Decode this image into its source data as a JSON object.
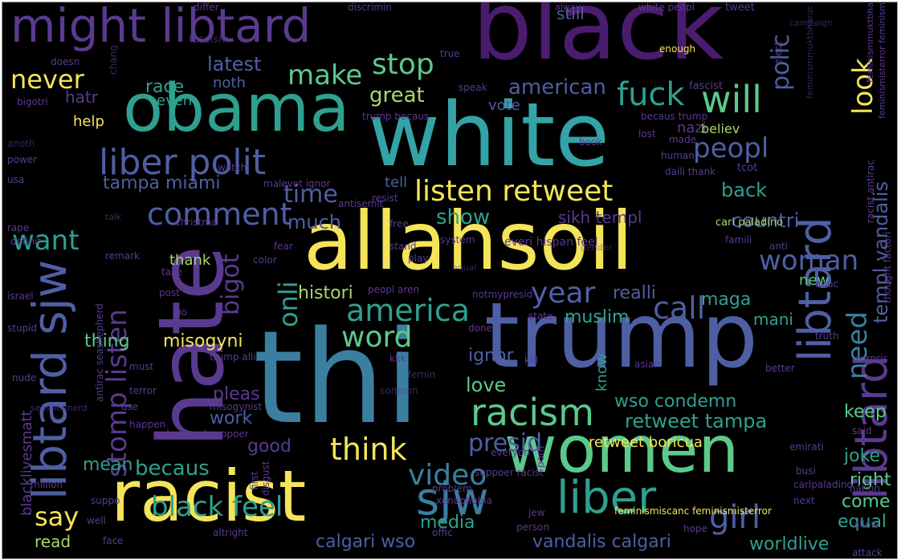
{
  "colors": {
    "background": "#000000",
    "yellow": "#f4e45a",
    "lime": "#a8d86a",
    "green": "#5cc98c",
    "teal": "#2fa08f",
    "cyan": "#34a3a7",
    "blue": "#3a7fa0",
    "indigo": "#4f5fa4",
    "violet": "#5a3a8f",
    "purple": "#4a1c6e"
  },
  "words": [
    {
      "text": "black",
      "color": "purple"
    },
    {
      "text": "white",
      "color": "cyan"
    },
    {
      "text": "allahsoil",
      "color": "yellow"
    },
    {
      "text": "thi",
      "color": "blue"
    },
    {
      "text": "trump",
      "color": "indigo"
    },
    {
      "text": "hate",
      "color": "violet"
    },
    {
      "text": "obama",
      "color": "teal"
    },
    {
      "text": "racist",
      "color": "yellow"
    },
    {
      "text": "women",
      "color": "green"
    },
    {
      "text": "libtard",
      "color": "violet"
    },
    {
      "text": "libtard",
      "color": "indigo"
    },
    {
      "text": "might libtard",
      "color": "violet"
    },
    {
      "text": "libtard sjw",
      "color": "indigo"
    },
    {
      "text": "sjw",
      "color": "blue"
    },
    {
      "text": "liber",
      "color": "teal"
    },
    {
      "text": "racism",
      "color": "green"
    },
    {
      "text": "liber polit",
      "color": "indigo"
    },
    {
      "text": "listen retweet",
      "color": "yellow"
    },
    {
      "text": "america",
      "color": "teal"
    },
    {
      "text": "stomp listen",
      "color": "violet"
    },
    {
      "text": "will",
      "color": "green"
    },
    {
      "text": "fuck",
      "color": "teal"
    },
    {
      "text": "comment",
      "color": "indigo"
    },
    {
      "text": "think",
      "color": "yellow"
    },
    {
      "text": "girl",
      "color": "indigo"
    },
    {
      "text": "video",
      "color": "blue"
    },
    {
      "text": "black feel",
      "color": "teal"
    },
    {
      "text": "call",
      "color": "indigo"
    },
    {
      "text": "stop",
      "color": "green"
    },
    {
      "text": "make",
      "color": "green"
    },
    {
      "text": "year",
      "color": "indigo"
    },
    {
      "text": "woman",
      "color": "indigo"
    },
    {
      "text": "peopl",
      "color": "indigo"
    },
    {
      "text": "look",
      "color": "yellow"
    },
    {
      "text": "need",
      "color": "blue"
    },
    {
      "text": "word",
      "color": "green"
    },
    {
      "text": "bigot",
      "color": "violet"
    },
    {
      "text": "onli",
      "color": "teal"
    },
    {
      "text": "want",
      "color": "teal"
    },
    {
      "text": "never",
      "color": "yellow"
    },
    {
      "text": "say",
      "color": "yellow"
    },
    {
      "text": "presid",
      "color": "indigo"
    },
    {
      "text": "time",
      "color": "indigo"
    },
    {
      "text": "latest",
      "color": "indigo"
    },
    {
      "text": "race",
      "color": "teal"
    },
    {
      "text": "polic",
      "color": "indigo"
    },
    {
      "text": "templ vandalis",
      "color": "indigo"
    },
    {
      "text": "retweet tampa",
      "color": "teal"
    },
    {
      "text": "tampa miami",
      "color": "indigo"
    },
    {
      "text": "sikh templ",
      "color": "violet"
    },
    {
      "text": "american",
      "color": "indigo"
    },
    {
      "text": "great",
      "color": "lime"
    },
    {
      "text": "becaus",
      "color": "teal"
    },
    {
      "text": "back",
      "color": "teal"
    },
    {
      "text": "countri",
      "color": "indigo"
    },
    {
      "text": "show",
      "color": "teal"
    },
    {
      "text": "much",
      "color": "indigo"
    },
    {
      "text": "histori",
      "color": "lime"
    },
    {
      "text": "realli",
      "color": "indigo"
    },
    {
      "text": "maga",
      "color": "teal"
    },
    {
      "text": "muslim",
      "color": "teal"
    },
    {
      "text": "thing",
      "color": "green"
    },
    {
      "text": "misogyni",
      "color": "yellow"
    },
    {
      "text": "ignor",
      "color": "indigo"
    },
    {
      "text": "love",
      "color": "green"
    },
    {
      "text": "wso condemn",
      "color": "teal"
    },
    {
      "text": "pleas",
      "color": "violet"
    },
    {
      "text": "work",
      "color": "indigo"
    },
    {
      "text": "good",
      "color": "violet"
    },
    {
      "text": "mean",
      "color": "teal"
    },
    {
      "text": "media",
      "color": "teal"
    },
    {
      "text": "calgari wso",
      "color": "indigo"
    },
    {
      "text": "vandalis calgari",
      "color": "indigo"
    },
    {
      "text": "worldlive",
      "color": "teal"
    },
    {
      "text": "equal",
      "color": "teal"
    },
    {
      "text": "come",
      "color": "green"
    },
    {
      "text": "right",
      "color": "green"
    },
    {
      "text": "joke",
      "color": "teal"
    },
    {
      "text": "keep",
      "color": "green"
    },
    {
      "text": "retweet boricua",
      "color": "yellow"
    },
    {
      "text": "read",
      "color": "lime"
    },
    {
      "text": "help",
      "color": "yellow"
    },
    {
      "text": "hatr",
      "color": "violet"
    },
    {
      "text": "even",
      "color": "teal"
    },
    {
      "text": "noth",
      "color": "indigo"
    },
    {
      "text": "vote",
      "color": "indigo"
    },
    {
      "text": "nazi",
      "color": "violet"
    },
    {
      "text": "believ",
      "color": "lime"
    },
    {
      "text": "tell",
      "color": "indigo"
    },
    {
      "text": "thank",
      "color": "lime"
    },
    {
      "text": "new",
      "color": "green"
    },
    {
      "text": "mani",
      "color": "teal"
    },
    {
      "text": "know",
      "color": "teal"
    },
    {
      "text": "blacklivesmatt",
      "color": "violet"
    },
    {
      "text": "still",
      "color": "indigo"
    },
    {
      "text": "differ",
      "color": "violet"
    },
    {
      "text": "discrimin",
      "color": "violet"
    },
    {
      "text": "tweet",
      "color": "violet"
    },
    {
      "text": "white peopl",
      "color": "violet"
    },
    {
      "text": "alway",
      "color": "violet"
    },
    {
      "text": "enough",
      "color": "yellow"
    },
    {
      "text": "fascist",
      "color": "violet"
    },
    {
      "text": "bigotri",
      "color": "violet"
    },
    {
      "text": "doesn",
      "color": "violet"
    },
    {
      "text": "true",
      "color": "violet"
    },
    {
      "text": "speak",
      "color": "violet"
    },
    {
      "text": "trump becaus",
      "color": "violet"
    },
    {
      "text": "becaus trump",
      "color": "violet"
    },
    {
      "text": "lost",
      "color": "violet"
    },
    {
      "text": "elect",
      "color": "violet"
    },
    {
      "text": "human",
      "color": "violet"
    },
    {
      "text": "daili thank",
      "color": "violet"
    },
    {
      "text": "tcot",
      "color": "violet"
    },
    {
      "text": "malevot ignor",
      "color": "violet"
    },
    {
      "text": "resist",
      "color": "violet"
    },
    {
      "text": "carl paladino",
      "color": "lime"
    },
    {
      "text": "antisemit",
      "color": "violet"
    },
    {
      "text": "christma",
      "color": "violet"
    },
    {
      "text": "watch",
      "color": "violet"
    },
    {
      "text": "usa",
      "color": "violet"
    },
    {
      "text": "rape",
      "color": "violet"
    },
    {
      "text": "israel",
      "color": "violet"
    },
    {
      "text": "stupid",
      "color": "violet"
    },
    {
      "text": "nude",
      "color": "violet"
    },
    {
      "text": "definit",
      "color": "violet"
    },
    {
      "text": "remark",
      "color": "violet"
    },
    {
      "text": "free",
      "color": "violet"
    },
    {
      "text": "system",
      "color": "violet"
    },
    {
      "text": "everi hispan feel",
      "color": "violet"
    },
    {
      "text": "stand",
      "color": "violet"
    },
    {
      "text": "play",
      "color": "violet"
    },
    {
      "text": "fear",
      "color": "violet"
    },
    {
      "text": "color",
      "color": "violet"
    },
    {
      "text": "take",
      "color": "violet"
    },
    {
      "text": "post",
      "color": "violet"
    },
    {
      "text": "go",
      "color": "violet"
    },
    {
      "text": "peopl aren",
      "color": "violet"
    },
    {
      "text": "notmypresid",
      "color": "violet"
    },
    {
      "text": "state",
      "color": "violet"
    },
    {
      "text": "educ",
      "color": "violet"
    },
    {
      "text": "anti",
      "color": "violet"
    },
    {
      "text": "famili",
      "color": "violet"
    },
    {
      "text": "truth",
      "color": "violet"
    },
    {
      "text": "done",
      "color": "violet"
    },
    {
      "text": "kill",
      "color": "violet"
    },
    {
      "text": "kkk",
      "color": "violet"
    },
    {
      "text": "trump alli",
      "color": "violet"
    },
    {
      "text": "misogynist",
      "color": "violet"
    },
    {
      "text": "shepherd suppoer",
      "color": "violet"
    },
    {
      "text": "antirac seashepherd",
      "color": "violet"
    },
    {
      "text": "happen",
      "color": "violet"
    },
    {
      "text": "use",
      "color": "violet"
    },
    {
      "text": "terror",
      "color": "violet"
    },
    {
      "text": "must",
      "color": "violet"
    },
    {
      "text": "first",
      "color": "violet"
    },
    {
      "text": "disgust",
      "color": "violet"
    },
    {
      "text": "everyon",
      "color": "violet"
    },
    {
      "text": "porn",
      "color": "violet"
    },
    {
      "text": "busi",
      "color": "violet"
    },
    {
      "text": "emirati",
      "color": "violet"
    },
    {
      "text": "carlpaladino",
      "color": "violet"
    },
    {
      "text": "next",
      "color": "violet"
    },
    {
      "text": "nation",
      "color": "violet"
    },
    {
      "text": "allow",
      "color": "violet"
    },
    {
      "text": "attack",
      "color": "violet"
    },
    {
      "text": "hope",
      "color": "violet"
    },
    {
      "text": "feminismiscanc feminismisterror",
      "color": "yellow"
    },
    {
      "text": "xenophobia",
      "color": "violet"
    },
    {
      "text": "jew",
      "color": "violet"
    },
    {
      "text": "person",
      "color": "violet"
    },
    {
      "text": "offic",
      "color": "violet"
    },
    {
      "text": "suppo",
      "color": "violet"
    },
    {
      "text": "well",
      "color": "violet"
    },
    {
      "text": "million",
      "color": "violet"
    },
    {
      "text": "altright",
      "color": "violet"
    },
    {
      "text": "face",
      "color": "violet"
    },
    {
      "text": "problem",
      "color": "violet"
    },
    {
      "text": "suppoer racist",
      "color": "violet"
    },
    {
      "text": "asian",
      "color": "violet"
    },
    {
      "text": "better",
      "color": "violet"
    },
    {
      "text": "said",
      "color": "violet"
    },
    {
      "text": "surpris",
      "color": "violet"
    },
    {
      "text": "thought factori",
      "color": "violet"
    },
    {
      "text": "racist antirac",
      "color": "violet"
    },
    {
      "text": "feminismisterror feminismiscanc",
      "color": "violet"
    },
    {
      "text": "feminismmuktbharat",
      "color": "violet"
    },
    {
      "text": "book",
      "color": "violet"
    },
    {
      "text": "made",
      "color": "violet"
    },
    {
      "text": "power",
      "color": "violet"
    },
    {
      "text": "anoth",
      "color": "violet"
    },
    {
      "text": "chang",
      "color": "violet"
    },
    {
      "text": "femin",
      "color": "violet"
    },
    {
      "text": "someon",
      "color": "violet"
    },
    {
      "text": "fascism",
      "color": "violet"
    },
    {
      "text": "campaign",
      "color": "violet"
    },
    {
      "text": "talk",
      "color": "violet"
    },
    {
      "text": "seashepherd",
      "color": "violet"
    },
    {
      "text": "feminismmuktbharat",
      "color": "violet"
    },
    {
      "text": "gender",
      "color": "violet"
    },
    {
      "text": "equal",
      "color": "violet"
    }
  ]
}
